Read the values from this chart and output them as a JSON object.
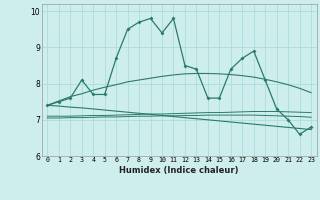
{
  "xlabel": "Humidex (Indice chaleur)",
  "xlim": [
    -0.5,
    23.5
  ],
  "ylim": [
    6,
    10.2
  ],
  "yticks": [
    6,
    7,
    8,
    9,
    10
  ],
  "xticks": [
    0,
    1,
    2,
    3,
    4,
    5,
    6,
    7,
    8,
    9,
    10,
    11,
    12,
    13,
    14,
    15,
    16,
    17,
    18,
    19,
    20,
    21,
    22,
    23
  ],
  "bg_color": "#ceeeed",
  "line_color": "#2a7a6a",
  "grid_color": "#aadedd",
  "series_main": [
    7.4,
    7.5,
    7.6,
    8.1,
    7.7,
    7.7,
    8.7,
    9.5,
    9.7,
    9.8,
    9.4,
    9.8,
    8.5,
    8.4,
    7.6,
    7.6,
    8.4,
    8.7,
    8.9,
    8.1,
    7.3,
    7.0,
    6.6,
    6.8
  ],
  "series_diag_up": [
    7.4,
    7.52,
    7.64,
    7.72,
    7.82,
    7.9,
    7.97,
    8.05,
    8.1,
    8.15,
    8.2,
    8.24,
    8.27,
    8.28,
    8.28,
    8.27,
    8.25,
    8.22,
    8.18,
    8.12,
    8.05,
    7.97,
    7.87,
    7.75
  ],
  "series_diag_down": [
    7.4,
    7.38,
    7.35,
    7.33,
    7.3,
    7.27,
    7.24,
    7.21,
    7.18,
    7.15,
    7.12,
    7.09,
    7.06,
    7.03,
    7.0,
    6.97,
    6.94,
    6.91,
    6.88,
    6.85,
    6.82,
    6.79,
    6.76,
    6.73
  ],
  "series_flat1": [
    7.1,
    7.1,
    7.1,
    7.11,
    7.12,
    7.12,
    7.13,
    7.14,
    7.15,
    7.16,
    7.16,
    7.17,
    7.18,
    7.19,
    7.2,
    7.2,
    7.21,
    7.22,
    7.23,
    7.23,
    7.23,
    7.22,
    7.21,
    7.2
  ],
  "series_flat2": [
    7.05,
    7.05,
    7.06,
    7.06,
    7.07,
    7.08,
    7.08,
    7.09,
    7.1,
    7.1,
    7.11,
    7.11,
    7.12,
    7.12,
    7.13,
    7.13,
    7.13,
    7.13,
    7.13,
    7.12,
    7.11,
    7.1,
    7.09,
    7.07
  ]
}
